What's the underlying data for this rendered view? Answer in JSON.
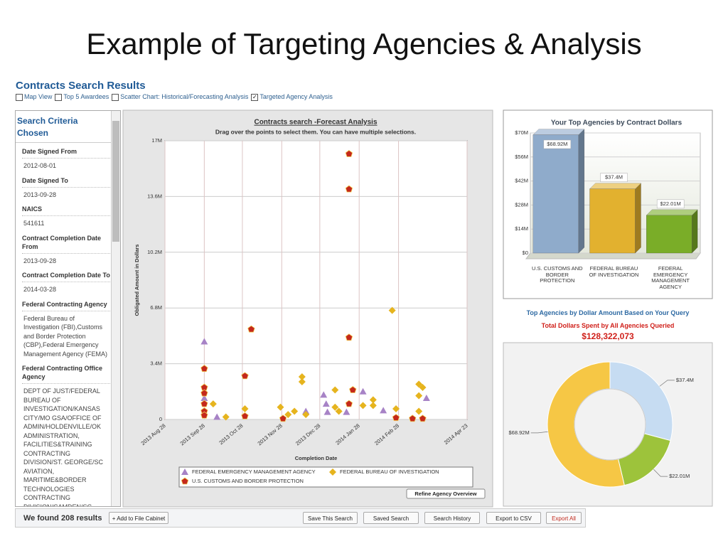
{
  "title": "Example of Targeting Agencies & Analysis",
  "header": "Contracts Search Results",
  "view_options": [
    {
      "label": "Map View",
      "checked": false
    },
    {
      "label": "Top 5 Awardees",
      "checked": false
    },
    {
      "label": "Scatter Chart: Historical/Forecasting Analysis",
      "checked": false
    },
    {
      "label": "Targeted Agency Analysis",
      "checked": true
    }
  ],
  "sidebar": {
    "title": "Search Criteria Chosen",
    "criteria": [
      {
        "label": "Date Signed From",
        "value": "2012-08-01"
      },
      {
        "label": "Date Signed To",
        "value": "2013-09-28"
      },
      {
        "label": "NAICS",
        "value": "541611"
      },
      {
        "label": "Contract Completion Date From",
        "value": "2013-09-28"
      },
      {
        "label": "Contract Completion Date To",
        "value": "2014-03-28"
      },
      {
        "label": "Federal Contracting Agency",
        "value": "Federal Bureau of Investigation (FBI),Customs and Border Protection (CBP),Federal Emergency Management Agency (FEMA)"
      },
      {
        "label": "Federal Contracting Office Agency",
        "value": "DEPT OF JUST/FEDERAL BUREAU OF INVESTIGATION/KANSAS CITY/MO GSA/OFFICE OF ADMIN/HOLDENVILLE/OK ADMINISTRATION, FACILITIES&TRAINING CONTRACTING DIVISION/ST. GEORGE/SC AVIATION, MARITIME&BORDER TECHNOLOGIES CONTRACTING DIVISION/CAMDEN/SC BORDER ENFORCEMENT CONTRACTING"
      }
    ]
  },
  "chart_data": [
    {
      "type": "scatter",
      "title": "Contracts search -Forecast Analysis",
      "subtitle": "Drag over the points to select them. You can have multiple selections.",
      "x_label": "Completion Date",
      "y_label": "Obligated Amount in Dollars",
      "xlim": [
        "2013-08-28",
        "2014-04-23"
      ],
      "xticks": [
        {
          "value": "2013-08-28",
          "label": "2013 Aug 28"
        },
        {
          "value": "2013-09-28",
          "label": "2013 Sep 28"
        },
        {
          "value": "2013-10-28",
          "label": "2013 Oct 28"
        },
        {
          "value": "2013-11-28",
          "label": "2013 Nov 28"
        },
        {
          "value": "2013-12-28",
          "label": "2013 Dec 28"
        },
        {
          "value": "2014-01-28",
          "label": "2014 Jan 28"
        },
        {
          "value": "2014-02-28",
          "label": "2014 Feb 28"
        },
        {
          "value": "2014-04-23",
          "label": "2014 Apr 23"
        }
      ],
      "ylim": [
        0,
        17000000
      ],
      "yticks": [
        0,
        {
          "value": 3400000,
          "label": "3.4M"
        },
        {
          "value": 6800000,
          "label": "6.8M"
        },
        {
          "value": 10200000,
          "label": "10.2M"
        },
        {
          "value": 13600000,
          "label": "13.6M"
        },
        {
          "value": 17000000,
          "label": "17M"
        }
      ],
      "grid": true,
      "legend": "bottom",
      "button": "Refine Agency Overview",
      "series": [
        {
          "name": "FEDERAL EMERGENCY MANAGEMENT AGENCY",
          "color": "#a783c6",
          "marker": "triangle",
          "x": [
            "2013-09-28",
            "2013-09-28",
            "2013-10-08",
            "2013-12-17",
            "2013-12-31",
            "2014-01-02",
            "2014-01-03",
            "2014-01-18",
            "2014-01-31",
            "2014-02-16",
            "2014-03-22"
          ],
          "values": [
            4750000,
            1300000,
            150000,
            500000,
            1500000,
            950000,
            450000,
            450000,
            1700000,
            550000,
            1300000
          ]
        },
        {
          "name": "FEDERAL BUREAU OF INVESTIGATION",
          "color": "#e6b41e",
          "marker": "diamond",
          "x": [
            "2013-10-05",
            "2013-10-15",
            "2013-10-30",
            "2013-11-27",
            "2013-12-03",
            "2013-12-08",
            "2013-12-14",
            "2013-12-14",
            "2013-12-17",
            "2014-01-09",
            "2014-01-09",
            "2014-01-12",
            "2014-01-31",
            "2014-02-08",
            "2014-02-08",
            "2014-02-23",
            "2014-02-26",
            "2014-03-16",
            "2014-03-19",
            "2014-03-16",
            "2014-03-16"
          ],
          "values": [
            950000,
            150000,
            650000,
            750000,
            300000,
            500000,
            2600000,
            2300000,
            300000,
            1800000,
            750000,
            500000,
            850000,
            1200000,
            850000,
            6650000,
            650000,
            2150000,
            1950000,
            1450000,
            500000
          ]
        },
        {
          "name": "U.S. CUSTOMS AND BORDER PROTECTION",
          "color": "#c4281c",
          "marker": "pentagon",
          "x": [
            "2013-09-28",
            "2013-09-28",
            "2013-09-28",
            "2013-09-28",
            "2013-09-28",
            "2013-09-28",
            "2013-10-30",
            "2013-10-30",
            "2013-11-04",
            "2013-11-29",
            "2014-01-20",
            "2014-01-20",
            "2014-01-20",
            "2014-01-20",
            "2014-01-23",
            "2014-02-26",
            "2014-03-11",
            "2014-03-19"
          ],
          "values": [
            3100000,
            1950000,
            1600000,
            950000,
            500000,
            250000,
            2650000,
            200000,
            5500000,
            50000,
            16200000,
            14050000,
            5000000,
            950000,
            1800000,
            100000,
            50000,
            50000
          ]
        }
      ]
    },
    {
      "type": "bar3d",
      "title": "Your Top Agencies by Contract Dollars",
      "categories": [
        "U.S. CUSTOMS AND BORDER PROTECTION",
        "FEDERAL BUREAU OF INVESTIGATION",
        "FEDERAL EMERGENCY MANAGEMENT AGENCY"
      ],
      "values": [
        68920000,
        37400000,
        22010000
      ],
      "value_labels": [
        "$68.92M",
        "$37.4M",
        "$22.01M"
      ],
      "colors": [
        "#8fabcb",
        "#e2b12f",
        "#7aad28"
      ],
      "ylim": [
        0,
        70000000
      ],
      "yticks": [
        {
          "value": 0,
          "label": "$0"
        },
        {
          "value": 14000000,
          "label": "$14M"
        },
        {
          "value": 28000000,
          "label": "$28M"
        },
        {
          "value": 42000000,
          "label": "$42M"
        },
        {
          "value": 56000000,
          "label": "$56M"
        },
        {
          "value": 70000000,
          "label": "$70M"
        }
      ],
      "grid": true
    },
    {
      "type": "donut",
      "heading": "Top Agencies by Dollar Amount Based on Your Query",
      "subheading": "Total Dollars Spent by All Agencies Queried",
      "total": "$128,322,073",
      "values": [
        37400000,
        22010000,
        68920000
      ],
      "value_labels": [
        "$37.4M",
        "$22.01M",
        "$68.92M"
      ],
      "colors": [
        "#c6dcf2",
        "#9dc33b",
        "#f6c745"
      ]
    }
  ],
  "footer": {
    "results": "We found 208 results",
    "add": "+ Add to File Cabinet",
    "buttons": [
      "Save This Search",
      "Saved Search",
      "Search History",
      "Export to CSV",
      "Export All"
    ]
  }
}
